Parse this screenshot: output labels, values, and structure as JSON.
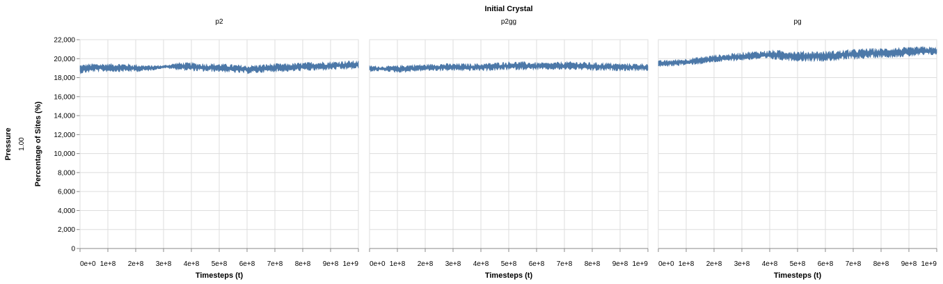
{
  "chart_data": {
    "type": "area",
    "column_facet_title": "Initial Crystal",
    "row_facet_title": "Pressure",
    "row_facet_value": "1.00",
    "ylabel": "Percentage of Sites (%)",
    "xlabel": "Timesteps (t)",
    "ylim": [
      0,
      22000
    ],
    "yticks": [
      "0",
      "2,000",
      "4,000",
      "6,000",
      "8,000",
      "10,000",
      "12,000",
      "14,000",
      "16,000",
      "18,000",
      "20,000",
      "22,000"
    ],
    "xlim": [
      0,
      1000000000
    ],
    "xticks": [
      "0e+0",
      "1e+8",
      "2e+8",
      "3e+8",
      "4e+8",
      "5e+8",
      "6e+8",
      "7e+8",
      "8e+8",
      "9e+8",
      "1e+9"
    ],
    "grid": true,
    "color": "#4c78a8",
    "panels": [
      {
        "name": "p2",
        "x": [
          0,
          50000000,
          100000000,
          150000000,
          200000000,
          250000000,
          300000000,
          350000000,
          400000000,
          450000000,
          500000000,
          550000000,
          600000000,
          650000000,
          700000000,
          750000000,
          800000000,
          850000000,
          900000000,
          950000000,
          1000000000
        ],
        "low": [
          18400,
          18600,
          18600,
          18600,
          18600,
          18700,
          19000,
          18800,
          18700,
          18600,
          18600,
          18500,
          18400,
          18500,
          18600,
          18600,
          18700,
          18700,
          18800,
          18800,
          18900
        ],
        "high": [
          19400,
          19500,
          19500,
          19500,
          19400,
          19300,
          19300,
          19600,
          19600,
          19500,
          19500,
          19400,
          19300,
          19400,
          19500,
          19500,
          19600,
          19700,
          19700,
          19800,
          19800
        ]
      },
      {
        "name": "p2gg",
        "x": [
          0,
          50000000,
          100000000,
          150000000,
          200000000,
          250000000,
          300000000,
          350000000,
          400000000,
          450000000,
          500000000,
          550000000,
          600000000,
          650000000,
          700000000,
          750000000,
          800000000,
          850000000,
          900000000,
          950000000,
          1000000000
        ],
        "low": [
          18600,
          18700,
          18500,
          18600,
          18700,
          18700,
          18700,
          18700,
          18700,
          18700,
          18800,
          18800,
          18800,
          18800,
          18800,
          18800,
          18700,
          18700,
          18700,
          18700,
          18700
        ],
        "high": [
          19300,
          19200,
          19300,
          19400,
          19400,
          19500,
          19500,
          19500,
          19500,
          19600,
          19700,
          19700,
          19600,
          19600,
          19700,
          19700,
          19600,
          19600,
          19500,
          19500,
          19500
        ]
      },
      {
        "name": "pg",
        "x": [
          0,
          50000000,
          100000000,
          150000000,
          200000000,
          250000000,
          300000000,
          350000000,
          400000000,
          450000000,
          500000000,
          550000000,
          600000000,
          650000000,
          700000000,
          750000000,
          800000000,
          850000000,
          900000000,
          950000000,
          1000000000
        ],
        "low": [
          19100,
          19200,
          19300,
          19400,
          19600,
          19700,
          19800,
          19900,
          19900,
          19800,
          19700,
          19700,
          19700,
          19800,
          19900,
          20000,
          20100,
          20100,
          20200,
          20300,
          20400
        ],
        "high": [
          19800,
          19900,
          20000,
          20200,
          20400,
          20500,
          20700,
          20800,
          20900,
          20900,
          20800,
          20800,
          20800,
          20900,
          21000,
          21100,
          21100,
          21200,
          21200,
          21300,
          21200
        ]
      }
    ]
  }
}
